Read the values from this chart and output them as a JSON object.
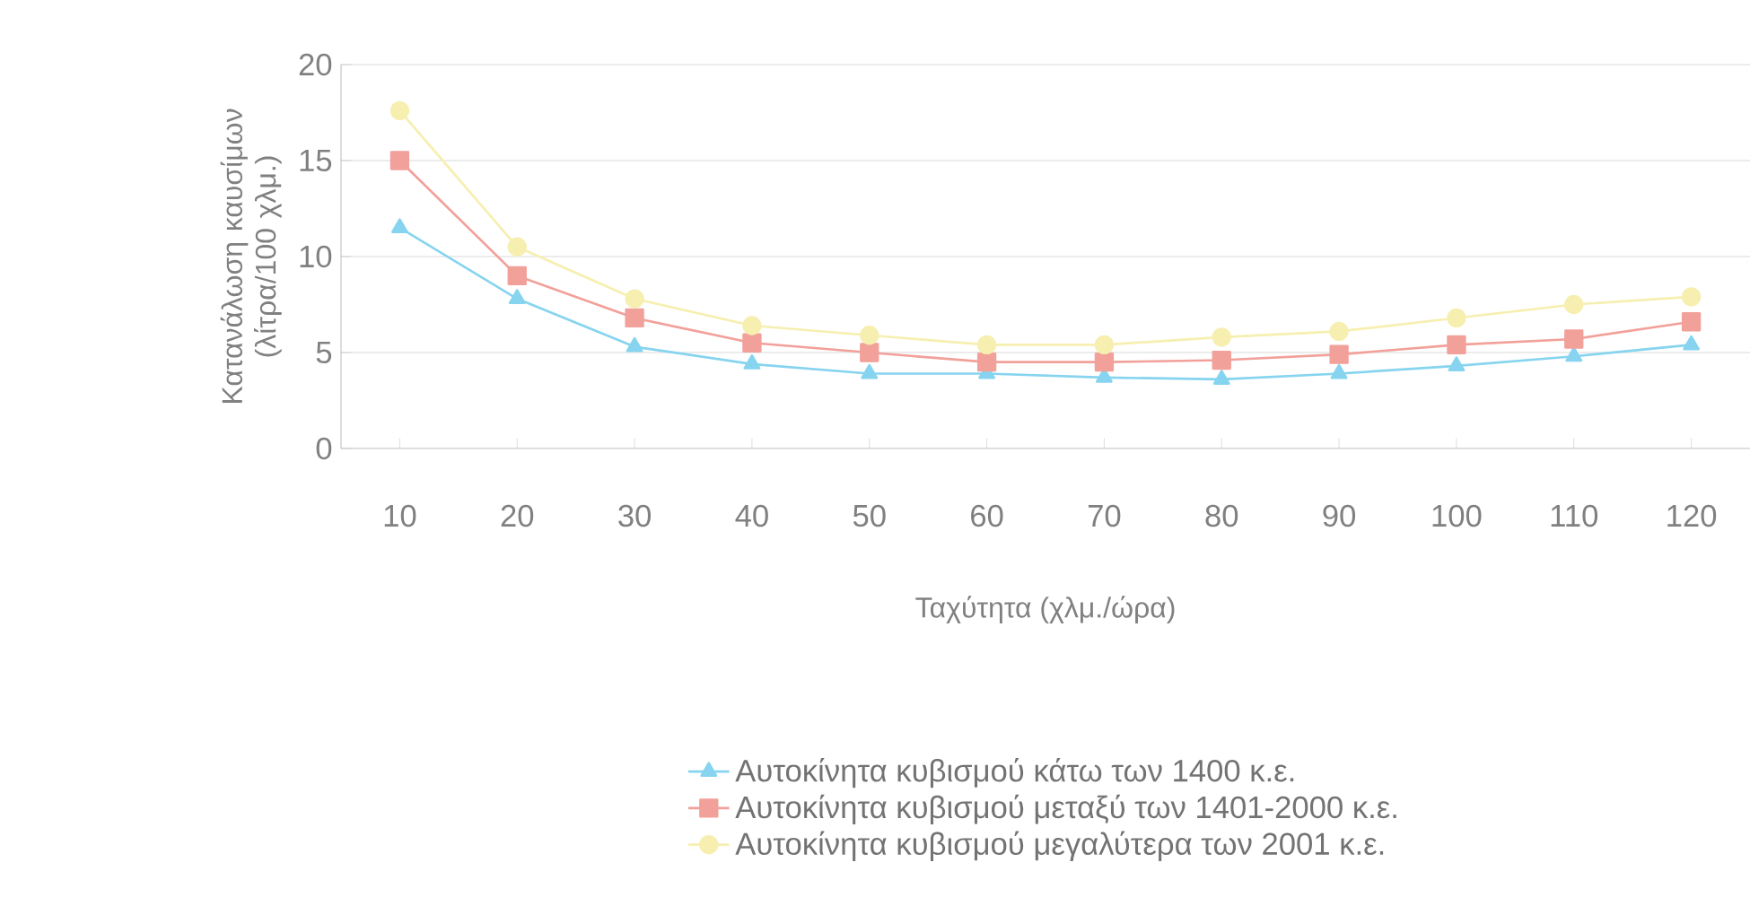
{
  "chart_data": {
    "type": "line",
    "xlabel": "Ταχύτητα (χλμ./ώρα)",
    "ylabel": "Κατανάλωση καυσίμων (λίτρα/100 χλμ.)",
    "categories": [
      "10",
      "20",
      "30",
      "40",
      "50",
      "60",
      "70",
      "80",
      "90",
      "100",
      "110",
      "120"
    ],
    "ylim": [
      0,
      20
    ],
    "yticks": [
      0,
      5,
      10,
      15,
      20
    ],
    "grid": "y",
    "legend": "bottom",
    "series": [
      {
        "name": "Αυτοκίνητα κυβισμού κάτω των 1400 κ.ε.",
        "color": "#86d4ef",
        "marker": "triangle",
        "values": [
          11.5,
          7.8,
          5.3,
          4.4,
          3.9,
          3.9,
          3.7,
          3.6,
          3.9,
          4.3,
          4.8,
          5.4
        ]
      },
      {
        "name": "Αυτοκίνητα κυβισμού μεταξύ των 1401-2000 κ.ε.",
        "color": "#f2a09a",
        "marker": "square",
        "values": [
          15,
          9.0,
          6.8,
          5.5,
          5.0,
          4.5,
          4.5,
          4.6,
          4.9,
          5.4,
          5.7,
          6.6
        ]
      },
      {
        "name": "Αυτοκίνητα κυβισμού μεγαλύτερα των 2001 κ.ε.",
        "color": "#f6efb0",
        "marker": "circle",
        "values": [
          17.6,
          10.5,
          7.8,
          6.4,
          5.9,
          5.4,
          5.4,
          5.8,
          6.1,
          6.8,
          7.5,
          7.9
        ]
      }
    ]
  }
}
